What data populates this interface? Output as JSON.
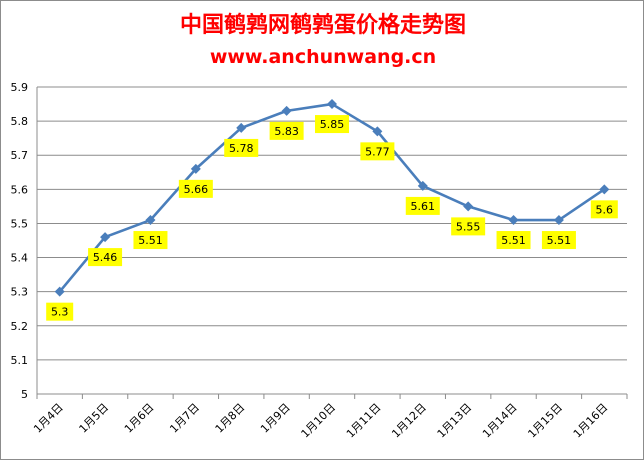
{
  "chart_data": {
    "type": "line",
    "title": "中国鹌鹑网鹌鹑蛋价格走势图",
    "subtitle": "www.anchunwang.cn",
    "xlabel": "",
    "ylabel": "",
    "categories": [
      "1月4日",
      "1月5日",
      "1月6日",
      "1月7日",
      "1月8日",
      "1月9日",
      "1月10日",
      "1月11日",
      "1月12日",
      "1月13日",
      "1月14日",
      "1月15日",
      "1月16日"
    ],
    "series": [
      {
        "values": [
          5.3,
          5.46,
          5.51,
          5.66,
          5.78,
          5.83,
          5.85,
          5.77,
          5.61,
          5.55,
          5.51,
          5.51,
          5.6
        ],
        "labels": [
          "5.3",
          "5.46",
          "5.51",
          "5.66",
          "5.78",
          "5.83",
          "5.85",
          "5.77",
          "5.61",
          "5.55",
          "5.51",
          "5.51",
          "5.6"
        ],
        "color": "#4a7ebb"
      }
    ],
    "ylim": [
      5,
      5.9
    ],
    "yticks": [
      "5",
      "5.1",
      "5.2",
      "5.3",
      "5.4",
      "5.5",
      "5.6",
      "5.7",
      "5.8",
      "5.9"
    ],
    "grid": true,
    "legend": "none",
    "colors": {
      "title": "#ff0000",
      "grid": "#8c8c8c",
      "label_background": "#ffff00",
      "line": "#4a7ebb"
    }
  }
}
